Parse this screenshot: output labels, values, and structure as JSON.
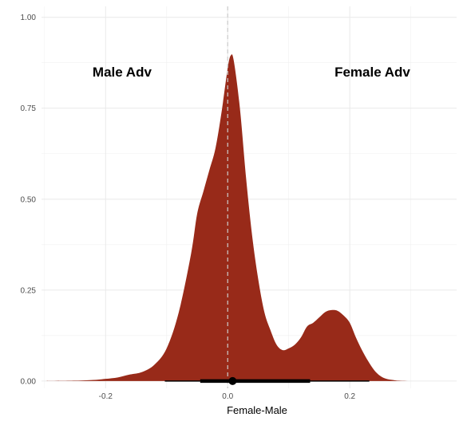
{
  "chart_data": {
    "type": "area",
    "xlabel": "Female-Male",
    "ylabel": "",
    "xlim": [
      -0.305,
      0.375
    ],
    "ylim": [
      -0.02,
      1.03
    ],
    "x_ticks": [
      {
        "value": -0.2,
        "label": "-0.2"
      },
      {
        "value": 0.0,
        "label": "0.0"
      },
      {
        "value": 0.2,
        "label": "0.2"
      }
    ],
    "y_ticks": [
      {
        "value": 0.0,
        "label": "0.00"
      },
      {
        "value": 0.25,
        "label": "0.25"
      },
      {
        "value": 0.5,
        "label": "0.50"
      },
      {
        "value": 0.75,
        "label": "0.75"
      },
      {
        "value": 1.0,
        "label": "1.00"
      }
    ],
    "grid": true,
    "fill_color": "#982a19",
    "reference_line": {
      "x": 0.0,
      "style": "dashed",
      "color": "#cccccc"
    },
    "annotations": [
      {
        "text": "Male Adv",
        "x": -0.173,
        "y": 0.85
      },
      {
        "text": "Female Adv",
        "x": 0.237,
        "y": 0.85
      }
    ],
    "density": {
      "x": [
        -0.3,
        -0.25,
        -0.22,
        -0.2,
        -0.18,
        -0.16,
        -0.14,
        -0.12,
        -0.1,
        -0.08,
        -0.06,
        -0.05,
        -0.04,
        -0.03,
        -0.02,
        -0.01,
        0.0,
        0.005,
        0.01,
        0.02,
        0.03,
        0.04,
        0.05,
        0.06,
        0.07,
        0.08,
        0.09,
        0.1,
        0.11,
        0.12,
        0.13,
        0.14,
        0.15,
        0.16,
        0.17,
        0.18,
        0.19,
        0.2,
        0.21,
        0.22,
        0.23,
        0.24,
        0.25,
        0.26,
        0.27,
        0.28,
        0.3,
        0.33
      ],
      "y": [
        0.0,
        0.001,
        0.003,
        0.006,
        0.01,
        0.018,
        0.025,
        0.045,
        0.09,
        0.19,
        0.35,
        0.46,
        0.52,
        0.58,
        0.64,
        0.74,
        0.86,
        0.895,
        0.88,
        0.75,
        0.56,
        0.4,
        0.28,
        0.19,
        0.14,
        0.1,
        0.085,
        0.09,
        0.1,
        0.12,
        0.15,
        0.16,
        0.175,
        0.19,
        0.195,
        0.193,
        0.18,
        0.16,
        0.12,
        0.085,
        0.055,
        0.03,
        0.014,
        0.006,
        0.003,
        0.001,
        0.0,
        0.0
      ]
    },
    "interval": {
      "point": 0.008,
      "thick": [
        -0.045,
        0.135
      ],
      "thin": [
        -0.103,
        0.232
      ]
    }
  }
}
